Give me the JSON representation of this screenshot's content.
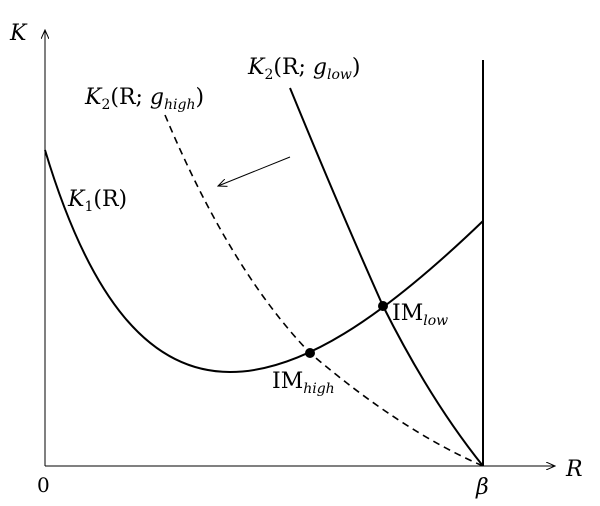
{
  "axes": {
    "y_label": "K",
    "x_label": "R",
    "origin_label": "0",
    "beta_label": "β"
  },
  "curves": {
    "k1": {
      "base": "K",
      "sub": "1",
      "arg": "(R)"
    },
    "k2_low": {
      "base": "K",
      "sub": "2",
      "arg_open": "(R; ",
      "g": "g",
      "g_sub": "low",
      "close": ")"
    },
    "k2_high": {
      "base": "K",
      "sub": "2",
      "arg_open": "(R; ",
      "g": "g",
      "g_sub": "high",
      "close": ")"
    }
  },
  "points": {
    "im_low": {
      "base": "IM",
      "sub": "low"
    },
    "im_high": {
      "base": "IM",
      "sub": "high"
    }
  },
  "styles": {
    "k2_high": "dashed",
    "k2_low": "solid",
    "k1": "solid"
  }
}
